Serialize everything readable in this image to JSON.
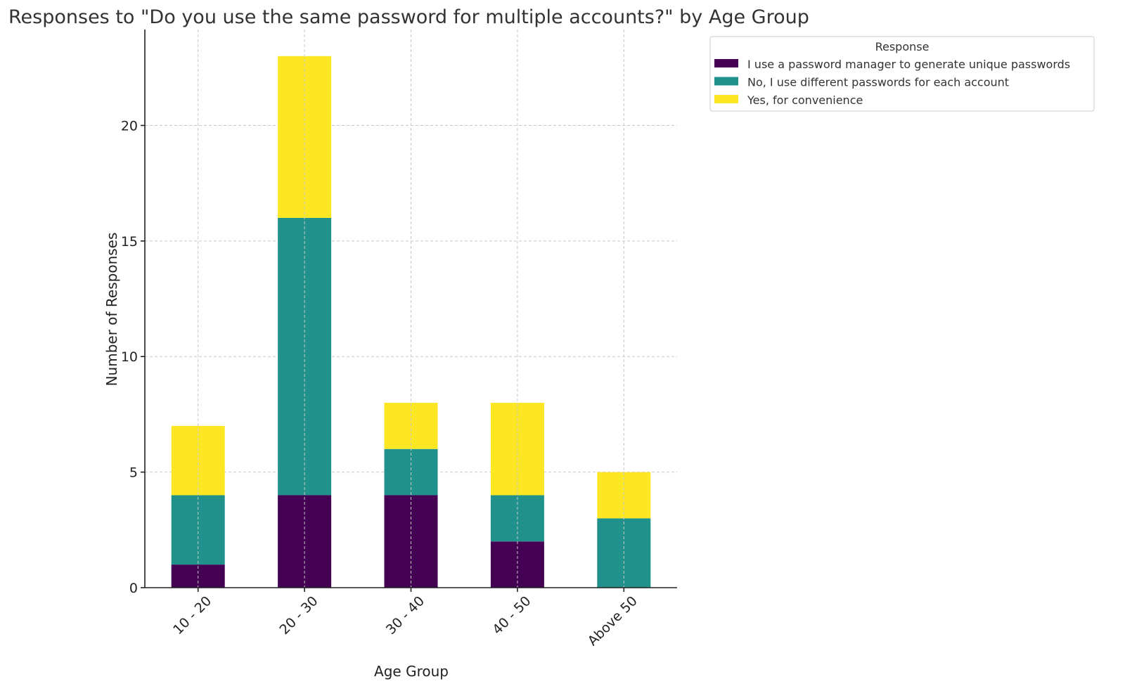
{
  "chart_data": {
    "type": "bar",
    "stacked": true,
    "title": "Responses to \"Do you use the same password for multiple accounts?\" by Age Group",
    "xlabel": "Age Group",
    "ylabel": "Number of Responses",
    "categories": [
      "10 - 20",
      "20 - 30",
      "30 - 40",
      "40 - 50",
      "Above 50"
    ],
    "series": [
      {
        "name": "I use a password manager to generate unique passwords",
        "color": "#440154",
        "values": [
          1,
          4,
          4,
          2,
          0
        ]
      },
      {
        "name": "No, I use different passwords for each account",
        "color": "#21918c",
        "values": [
          3,
          12,
          2,
          2,
          3
        ]
      },
      {
        "name": "Yes, for convenience",
        "color": "#fde725",
        "values": [
          3,
          7,
          2,
          4,
          2
        ]
      }
    ],
    "yticks": [
      0,
      5,
      10,
      15,
      20
    ],
    "ylim": [
      0,
      24.15
    ],
    "grid": true,
    "legend": {
      "title": "Response",
      "placement": "outside-top-right"
    }
  }
}
